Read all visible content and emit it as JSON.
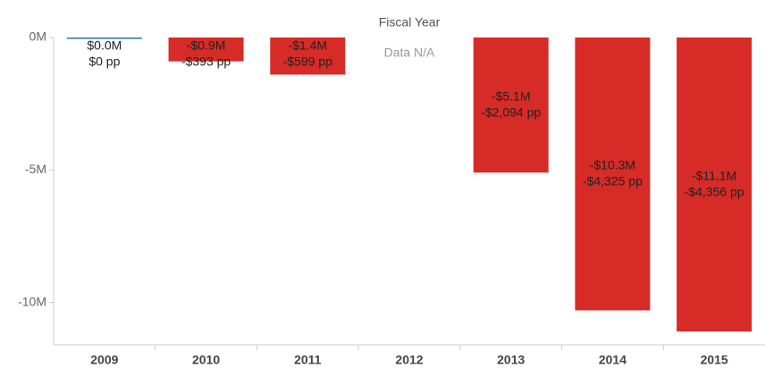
{
  "chart_data": {
    "type": "bar",
    "x_label": "Fiscal Year",
    "categories": [
      "2009",
      "2010",
      "2011",
      "2012",
      "2013",
      "2014",
      "2015"
    ],
    "values": [
      0,
      -0.9,
      -1.4,
      null,
      -5.1,
      -10.3,
      -11.1
    ],
    "value_labels": [
      "$0.0M",
      "-$0.9M",
      "-$1.4M",
      null,
      "-$5.1M",
      "-$10.3M",
      "-$11.1M"
    ],
    "per_person_labels": [
      "$0 pp",
      "-$393 pp",
      "-$599 pp",
      null,
      "-$2,094 pp",
      "-$4,325 pp",
      "-$4,356 pp"
    ],
    "annotations": [
      null,
      null,
      null,
      "Data N/A",
      null,
      null,
      null
    ],
    "colors": [
      "#1f77b4",
      "#d62b27",
      "#d62b27",
      null,
      "#d62b27",
      "#d62b27",
      "#d62b27"
    ],
    "ylim": [
      -11.6,
      0
    ],
    "yticks": [
      {
        "value": 0,
        "label": "0M"
      },
      {
        "value": -5,
        "label": "-5M"
      },
      {
        "value": -10,
        "label": "-10M"
      }
    ],
    "grid": false
  }
}
